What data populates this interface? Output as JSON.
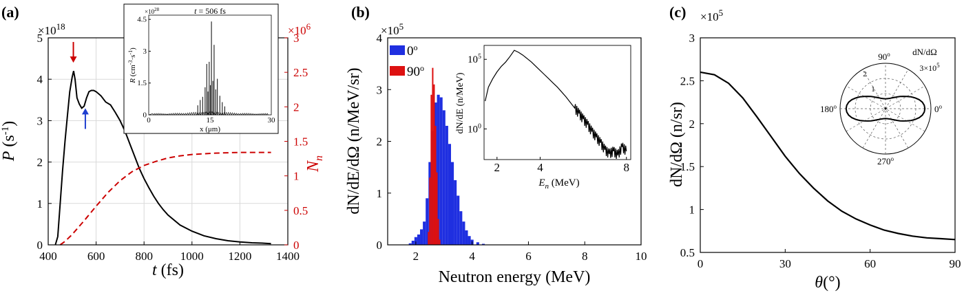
{
  "chart_data": [
    {
      "panel": "(a)",
      "type": "line",
      "xlabel_var": "t",
      "xlabel_unit": " (fs)",
      "ylabel_var": "P",
      "ylabel_unit": " (s",
      "ylabel_exp": "-1",
      "ylabel_close": ")",
      "y2label_var": "N",
      "y2label_sub": "n",
      "y_multiplier_base": "×10",
      "y_multiplier_exp": "18",
      "y2_multiplier_base": "×10",
      "y2_multiplier_exp": "6",
      "xlim": [
        400,
        1400
      ],
      "ylim": [
        0,
        5
      ],
      "y2lim": [
        0,
        3
      ],
      "xticks": [
        400,
        600,
        800,
        1000,
        1200,
        1400
      ],
      "yticks": [
        0,
        1,
        2,
        3,
        4,
        5
      ],
      "y2ticks": [
        0,
        0.5,
        1,
        1.5,
        2,
        2.5,
        3
      ],
      "grid": true,
      "series": [
        {
          "axis": "left",
          "color": "#000000",
          "style": "solid",
          "x": [
            430,
            440,
            450,
            460,
            470,
            480,
            490,
            500,
            506,
            512,
            520,
            530,
            540,
            550,
            560,
            570,
            580,
            590,
            600,
            620,
            640,
            660,
            680,
            700,
            720,
            740,
            760,
            780,
            800,
            820,
            840,
            860,
            880,
            900,
            950,
            1000,
            1050,
            1100,
            1150,
            1200,
            1250,
            1300,
            1330
          ],
          "y": [
            0,
            0.2,
            1.0,
            1.8,
            2.5,
            3.1,
            3.7,
            4.05,
            4.2,
            4.0,
            3.55,
            3.4,
            3.3,
            3.35,
            3.55,
            3.7,
            3.73,
            3.73,
            3.7,
            3.6,
            3.45,
            3.38,
            3.2,
            3.0,
            2.75,
            2.45,
            2.15,
            1.85,
            1.6,
            1.38,
            1.18,
            1.0,
            0.85,
            0.72,
            0.48,
            0.33,
            0.22,
            0.15,
            0.1,
            0.07,
            0.05,
            0.04,
            0.03
          ]
        },
        {
          "axis": "right",
          "color": "#cc0000",
          "style": "dashed",
          "x": [
            450,
            470,
            500,
            550,
            600,
            650,
            700,
            750,
            800,
            850,
            900,
            950,
            1000,
            1050,
            1100,
            1150,
            1200,
            1250,
            1300,
            1330
          ],
          "y": [
            0,
            0.05,
            0.15,
            0.35,
            0.56,
            0.76,
            0.93,
            1.06,
            1.15,
            1.21,
            1.26,
            1.29,
            1.31,
            1.32,
            1.33,
            1.335,
            1.34,
            1.34,
            1.34,
            1.34
          ]
        }
      ],
      "annotations": [
        {
          "type": "arrow-down",
          "color": "#cc0000",
          "x": 505,
          "y_from": 4.9,
          "y_to": 4.4
        },
        {
          "type": "arrow-up",
          "color": "#1f3fd0",
          "x": 555,
          "y_from": 2.8,
          "y_to": 3.3
        }
      ],
      "inset": {
        "title_var": "t",
        "title_text": " = 506 fs",
        "multiplier_base": "×10",
        "multiplier_exp": "28",
        "ylabel_var": "R",
        "ylabel_unit": " (cm",
        "ylabel_exp": "-3",
        "ylabel_mid": "·s",
        "ylabel_exp2": "-1",
        "ylabel_close": ")",
        "xlabel": "x (μm)",
        "xlim": [
          0,
          30
        ],
        "ylim": [
          0,
          4.7
        ],
        "xticks": [
          0,
          15,
          30
        ],
        "yticks": [
          0,
          1.5,
          3,
          4.5
        ],
        "peaks": [
          [
            12.0,
            0.45
          ],
          [
            12.6,
            0.7
          ],
          [
            13.2,
            0.85
          ],
          [
            13.8,
            1.3
          ],
          [
            14.2,
            2.4
          ],
          [
            14.5,
            1.1
          ],
          [
            14.8,
            2.5
          ],
          [
            15.1,
            1.4
          ],
          [
            15.35,
            4.4
          ],
          [
            15.7,
            1.6
          ],
          [
            16.0,
            3.3
          ],
          [
            16.4,
            1.2
          ],
          [
            16.8,
            1.7
          ],
          [
            17.4,
            0.9
          ],
          [
            18.0,
            0.6
          ],
          [
            18.6,
            0.4
          ]
        ]
      }
    },
    {
      "panel": "(b)",
      "type": "bar",
      "xlabel": "Neutron energy (MeV)",
      "ylabel": "dN/dE/dΩ (n/MeV/sr)",
      "y_multiplier_base": "×10",
      "y_multiplier_exp": "5",
      "xlim": [
        1,
        10
      ],
      "ylim": [
        0,
        4
      ],
      "xticks": [
        2,
        4,
        6,
        8,
        10
      ],
      "yticks": [
        0,
        1,
        2,
        3,
        4
      ],
      "legend_position": "top-left",
      "series": [
        {
          "name_base": "0",
          "name_sup": "o",
          "color": "#1f2fe0",
          "x": [
            1.8,
            1.9,
            2.0,
            2.1,
            2.2,
            2.3,
            2.4,
            2.5,
            2.6,
            2.7,
            2.8,
            2.9,
            3.0,
            3.1,
            3.2,
            3.3,
            3.4,
            3.5,
            3.6,
            3.7,
            3.8,
            3.9,
            4.0,
            4.2,
            4.4
          ],
          "values": [
            0.03,
            0.08,
            0.15,
            0.2,
            0.3,
            0.45,
            0.9,
            1.6,
            2.2,
            2.75,
            2.9,
            2.85,
            2.6,
            2.3,
            1.95,
            1.6,
            1.25,
            0.95,
            0.65,
            0.45,
            0.28,
            0.17,
            0.1,
            0.05,
            0.02
          ]
        },
        {
          "name_base": "90",
          "name_sup": "o",
          "color": "#dd1111",
          "x": [
            2.45,
            2.5,
            2.55,
            2.6,
            2.65,
            2.7,
            2.75,
            2.8,
            2.85
          ],
          "values": [
            0.25,
            1.3,
            2.9,
            3.42,
            3.1,
            2.3,
            1.4,
            0.5,
            0.1
          ]
        }
      ],
      "inset": {
        "ylabel": "dN/dE (n/MeV)",
        "xlabel_var": "E",
        "xlabel_sub": "n",
        "xlabel_unit": " (MeV)",
        "xlim": [
          1.4,
          8.2
        ],
        "yscale": "log",
        "xticks": [
          2,
          4,
          8
        ],
        "yticks_base": "10",
        "yticks_exp": [
          "0",
          "5"
        ],
        "curve": {
          "x": [
            1.45,
            1.6,
            1.8,
            2.0,
            2.2,
            2.4,
            2.6,
            2.8,
            3.0,
            3.2,
            3.4,
            3.6,
            3.8,
            4.0,
            4.2,
            4.4,
            4.6,
            4.8,
            5.0,
            5.2,
            5.4,
            5.6,
            5.8,
            6.0,
            6.2,
            6.4,
            6.6,
            6.8,
            7.0,
            7.2,
            7.4,
            7.6,
            7.8,
            8.0
          ],
          "log10y": [
            2.0,
            3.0,
            3.6,
            4.1,
            4.5,
            4.8,
            5.2,
            5.65,
            5.5,
            5.3,
            5.05,
            4.8,
            4.5,
            4.2,
            3.9,
            3.6,
            3.3,
            3.0,
            2.65,
            2.3,
            1.9,
            1.5,
            1.1,
            0.7,
            0.3,
            -0.2,
            -0.6,
            -1.0,
            -1.5,
            -1.8,
            -1.6,
            -1.9,
            -1.3,
            -1.6
          ]
        }
      }
    },
    {
      "panel": "(c)",
      "type": "line",
      "xlabel_var": "θ",
      "xlabel_unit": "(°)",
      "ylabel": "dN/dΩ (n/sr)",
      "y_multiplier_base": "×10",
      "y_multiplier_exp": "5",
      "xlim": [
        0,
        90
      ],
      "ylim": [
        0.5,
        3
      ],
      "xticks": [
        0,
        30,
        60,
        90
      ],
      "yticks": [
        0.5,
        1,
        1.5,
        2,
        2.5,
        3
      ],
      "series": [
        {
          "color": "#000000",
          "x": [
            0,
            5,
            10,
            15,
            20,
            25,
            30,
            35,
            40,
            45,
            50,
            55,
            60,
            65,
            70,
            75,
            80,
            85,
            90
          ],
          "values": [
            2.6,
            2.57,
            2.47,
            2.3,
            2.08,
            1.85,
            1.62,
            1.42,
            1.25,
            1.1,
            0.98,
            0.89,
            0.82,
            0.76,
            0.72,
            0.69,
            0.67,
            0.66,
            0.65
          ]
        }
      ],
      "inset": {
        "type": "polar",
        "title": "dN/dΩ",
        "rmax_label": "3×10",
        "rmax_exp": "5",
        "ring_labels": [
          "1",
          "2"
        ],
        "angle_labels": [
          {
            "base": "90",
            "sup": "o"
          },
          {
            "base": "0",
            "sup": "o"
          },
          {
            "base": "180",
            "sup": "o"
          },
          {
            "base": "270",
            "sup": "o"
          }
        ]
      }
    }
  ],
  "panel_tags": [
    "(a)",
    "(b)",
    "(c)"
  ]
}
